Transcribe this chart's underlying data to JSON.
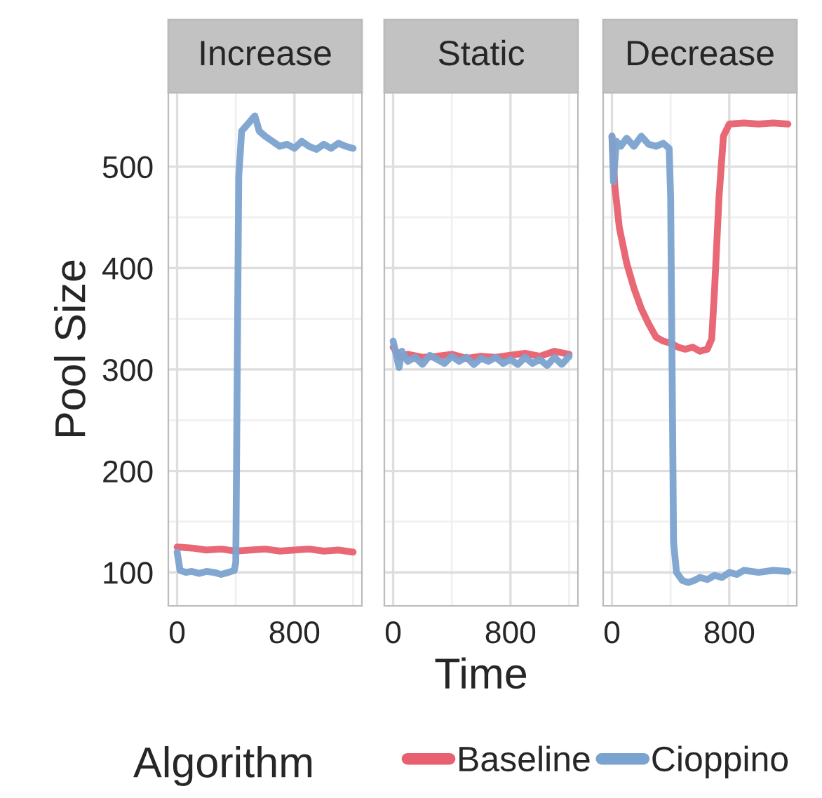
{
  "chart_data": [
    {
      "type": "line",
      "title": "Increase",
      "ylabel": "Pool Size",
      "legend": "bottom",
      "legend_title": "Algorithm",
      "xlim": [
        -60,
        1260
      ],
      "ylim": [
        67,
        573
      ],
      "xticks": [
        0,
        800
      ],
      "yticks": [
        100,
        200,
        300,
        400,
        500
      ],
      "grid": true,
      "series": [
        {
          "name": "Baseline",
          "color": "#e8606f",
          "x": [
            0,
            100,
            200,
            300,
            400,
            500,
            600,
            700,
            800,
            900,
            1000,
            1100,
            1200
          ],
          "values": [
            125,
            124,
            122,
            123,
            121,
            122,
            123,
            121,
            122,
            123,
            121,
            122,
            120
          ]
        },
        {
          "name": "Cioppino",
          "color": "#7ba3d0",
          "x": [
            0,
            20,
            60,
            100,
            150,
            200,
            250,
            300,
            350,
            390,
            400,
            420,
            440,
            470,
            500,
            530,
            560,
            600,
            650,
            700,
            750,
            800,
            850,
            900,
            950,
            1000,
            1050,
            1100,
            1150,
            1200
          ],
          "values": [
            120,
            102,
            100,
            101,
            99,
            101,
            100,
            98,
            100,
            102,
            110,
            490,
            535,
            540,
            545,
            550,
            535,
            530,
            525,
            520,
            522,
            518,
            525,
            520,
            517,
            522,
            518,
            523,
            520,
            518
          ]
        }
      ]
    },
    {
      "type": "line",
      "title": "Static",
      "xlabel": "Time",
      "tick_labels": "x",
      "xlim": [
        -60,
        1260
      ],
      "ylim": [
        67,
        573
      ],
      "xticks": [
        0,
        800
      ],
      "yticks": [
        100,
        200,
        300,
        400,
        500
      ],
      "grid": true,
      "series": [
        {
          "name": "Baseline",
          "color": "#e8606f",
          "x": [
            0,
            50,
            100,
            200,
            300,
            400,
            500,
            600,
            700,
            800,
            900,
            1000,
            1100,
            1200
          ],
          "values": [
            322,
            312,
            315,
            312,
            313,
            315,
            311,
            313,
            312,
            314,
            316,
            313,
            318,
            315
          ]
        },
        {
          "name": "Cioppino",
          "color": "#7ba3d0",
          "x": [
            0,
            20,
            40,
            60,
            100,
            150,
            200,
            250,
            300,
            350,
            400,
            450,
            500,
            550,
            600,
            650,
            700,
            750,
            800,
            850,
            900,
            950,
            1000,
            1050,
            1100,
            1150,
            1200
          ],
          "values": [
            328,
            315,
            302,
            318,
            308,
            312,
            305,
            314,
            310,
            306,
            313,
            308,
            312,
            305,
            311,
            308,
            312,
            306,
            310,
            305,
            312,
            306,
            310,
            304,
            312,
            305,
            313
          ]
        }
      ]
    },
    {
      "type": "line",
      "title": "Decrease",
      "tick_labels": "x",
      "xlim": [
        -60,
        1260
      ],
      "ylim": [
        67,
        573
      ],
      "xticks": [
        0,
        800
      ],
      "yticks": [
        100,
        200,
        300,
        400,
        500
      ],
      "grid": true,
      "series": [
        {
          "name": "Baseline",
          "color": "#e8606f",
          "x": [
            0,
            20,
            50,
            100,
            150,
            200,
            250,
            300,
            350,
            400,
            450,
            500,
            550,
            600,
            650,
            680,
            700,
            730,
            760,
            800,
            900,
            1000,
            1100,
            1200
          ],
          "values": [
            530,
            480,
            440,
            405,
            380,
            360,
            345,
            332,
            328,
            326,
            322,
            320,
            322,
            318,
            320,
            330,
            380,
            470,
            530,
            542,
            543,
            542,
            543,
            542
          ]
        },
        {
          "name": "Cioppino",
          "color": "#7ba3d0",
          "x": [
            0,
            10,
            30,
            60,
            100,
            150,
            200,
            250,
            300,
            350,
            390,
            400,
            410,
            420,
            440,
            480,
            520,
            560,
            600,
            650,
            700,
            750,
            800,
            850,
            900,
            1000,
            1100,
            1200
          ],
          "values": [
            530,
            485,
            525,
            520,
            528,
            520,
            530,
            522,
            520,
            523,
            518,
            470,
            300,
            130,
            100,
            92,
            90,
            92,
            95,
            93,
            97,
            95,
            100,
            98,
            102,
            100,
            102,
            101
          ]
        }
      ]
    }
  ]
}
